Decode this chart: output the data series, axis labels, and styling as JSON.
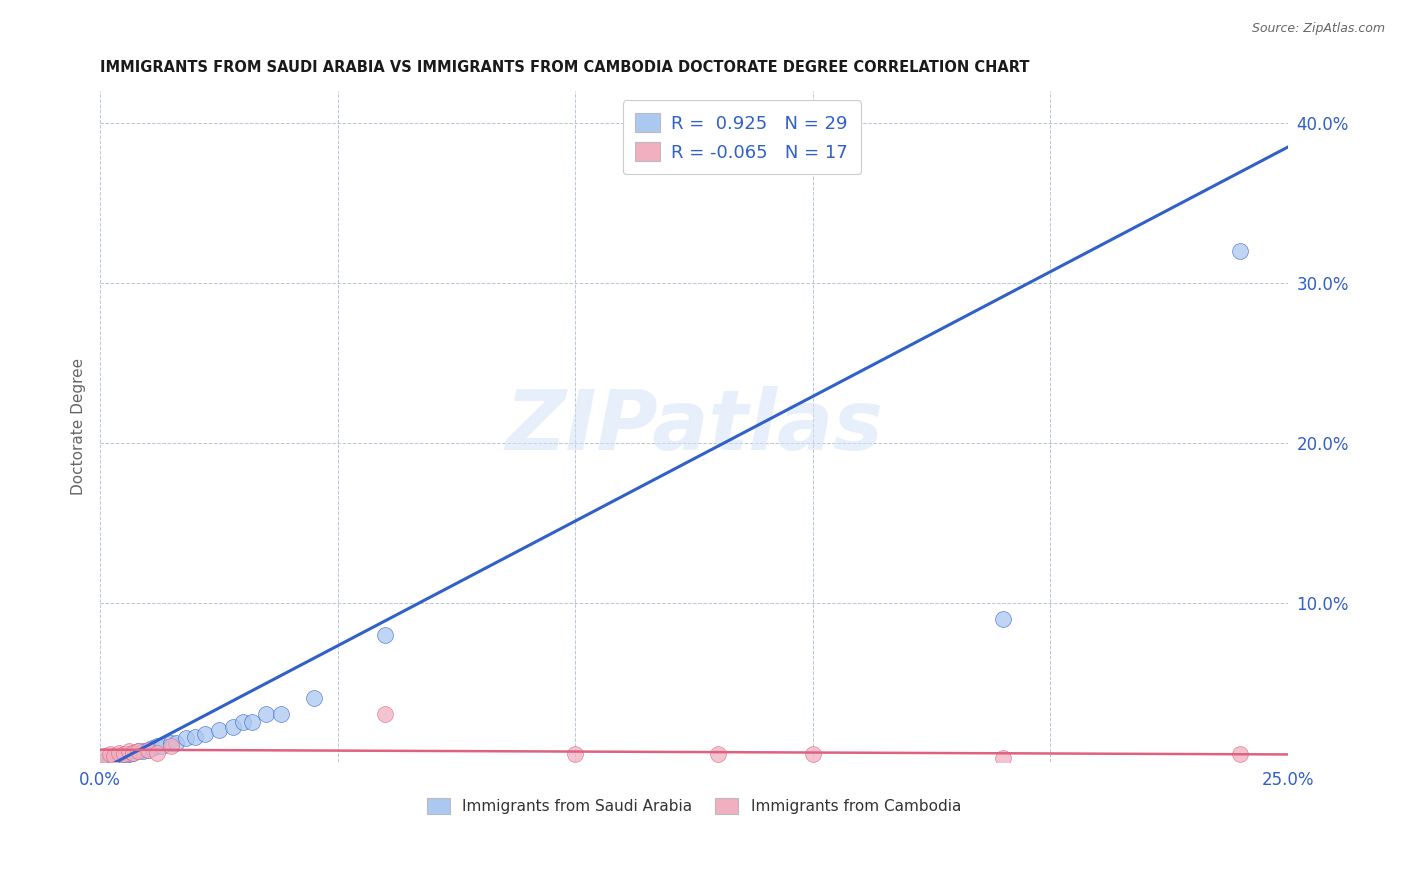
{
  "title": "IMMIGRANTS FROM SAUDI ARABIA VS IMMIGRANTS FROM CAMBODIA DOCTORATE DEGREE CORRELATION CHART",
  "source": "Source: ZipAtlas.com",
  "ylabel": "Doctorate Degree",
  "watermark": "ZIPatlas",
  "saudi_R": 0.925,
  "saudi_N": 29,
  "cambodia_R": -0.065,
  "cambodia_N": 17,
  "xlim": [
    0.0,
    0.25
  ],
  "ylim": [
    0.0,
    0.42
  ],
  "xticks": [
    0.0,
    0.05,
    0.1,
    0.15,
    0.2,
    0.25
  ],
  "yticks": [
    0.0,
    0.1,
    0.2,
    0.3,
    0.4
  ],
  "saudi_color": "#aac8f0",
  "saudi_line_color": "#3060c8",
  "cambodia_color": "#f0b0c0",
  "cambodia_line_color": "#e06080",
  "saudi_x": [
    0.001,
    0.002,
    0.003,
    0.004,
    0.005,
    0.005,
    0.006,
    0.007,
    0.008,
    0.009,
    0.01,
    0.011,
    0.012,
    0.013,
    0.015,
    0.016,
    0.018,
    0.02,
    0.022,
    0.025,
    0.028,
    0.03,
    0.032,
    0.035,
    0.038,
    0.045,
    0.06,
    0.19,
    0.24
  ],
  "saudi_y": [
    0.001,
    0.002,
    0.003,
    0.003,
    0.004,
    0.005,
    0.005,
    0.006,
    0.007,
    0.007,
    0.008,
    0.009,
    0.01,
    0.01,
    0.012,
    0.012,
    0.015,
    0.016,
    0.018,
    0.02,
    0.022,
    0.025,
    0.025,
    0.03,
    0.03,
    0.04,
    0.08,
    0.09,
    0.32
  ],
  "cambodia_x": [
    0.001,
    0.002,
    0.003,
    0.004,
    0.005,
    0.006,
    0.007,
    0.008,
    0.01,
    0.012,
    0.015,
    0.06,
    0.1,
    0.13,
    0.15,
    0.19,
    0.24
  ],
  "cambodia_y": [
    0.004,
    0.005,
    0.004,
    0.006,
    0.005,
    0.007,
    0.006,
    0.007,
    0.008,
    0.006,
    0.01,
    0.03,
    0.005,
    0.005,
    0.005,
    0.003,
    0.005
  ],
  "background_color": "#ffffff",
  "grid_color": "#b8c8d8",
  "legend_color_saudi": "#aac8f0",
  "legend_color_cambodia": "#f0b0c0",
  "reg_line_saudi": [
    0.0,
    0.25,
    -0.005,
    0.385
  ],
  "reg_line_cambodia": [
    0.0,
    0.25,
    0.008,
    0.005
  ]
}
